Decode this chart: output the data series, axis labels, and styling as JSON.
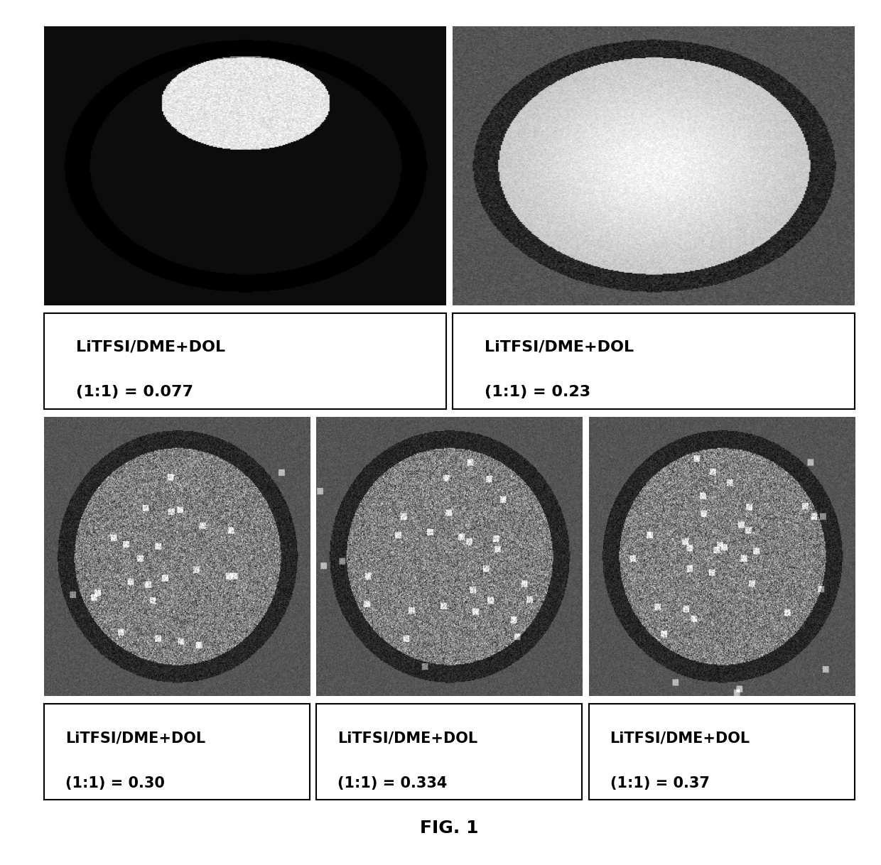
{
  "title": "FIG. 1",
  "background_color": "#ffffff",
  "labels": [
    "LiTFSI/DME+DOL\n(1:1) = 0.077",
    "LiTFSI/DME+DOL\n(1:1) = 0.23",
    "LiTFSI/DME+DOL\n(1:1) = 0.30",
    "LiTFSI/DME+DOL\n(1:1) = 0.334",
    "LiTFSI/DME+DOL\n(1:1) = 0.37"
  ],
  "label_bold_parts": [
    "LiTFSI/DME+DOL",
    "(1:1) = 0.077",
    "LiTFSI/DME+DOL",
    "(1:1) = 0.23",
    "LiTFSI/DME+DOL",
    "(1:1) = 0.30",
    "LiTFSI/DME+DOL",
    "(1:1) = 0.334",
    "LiTFSI/DME+DOL",
    "(1:1) = 0.37"
  ]
}
